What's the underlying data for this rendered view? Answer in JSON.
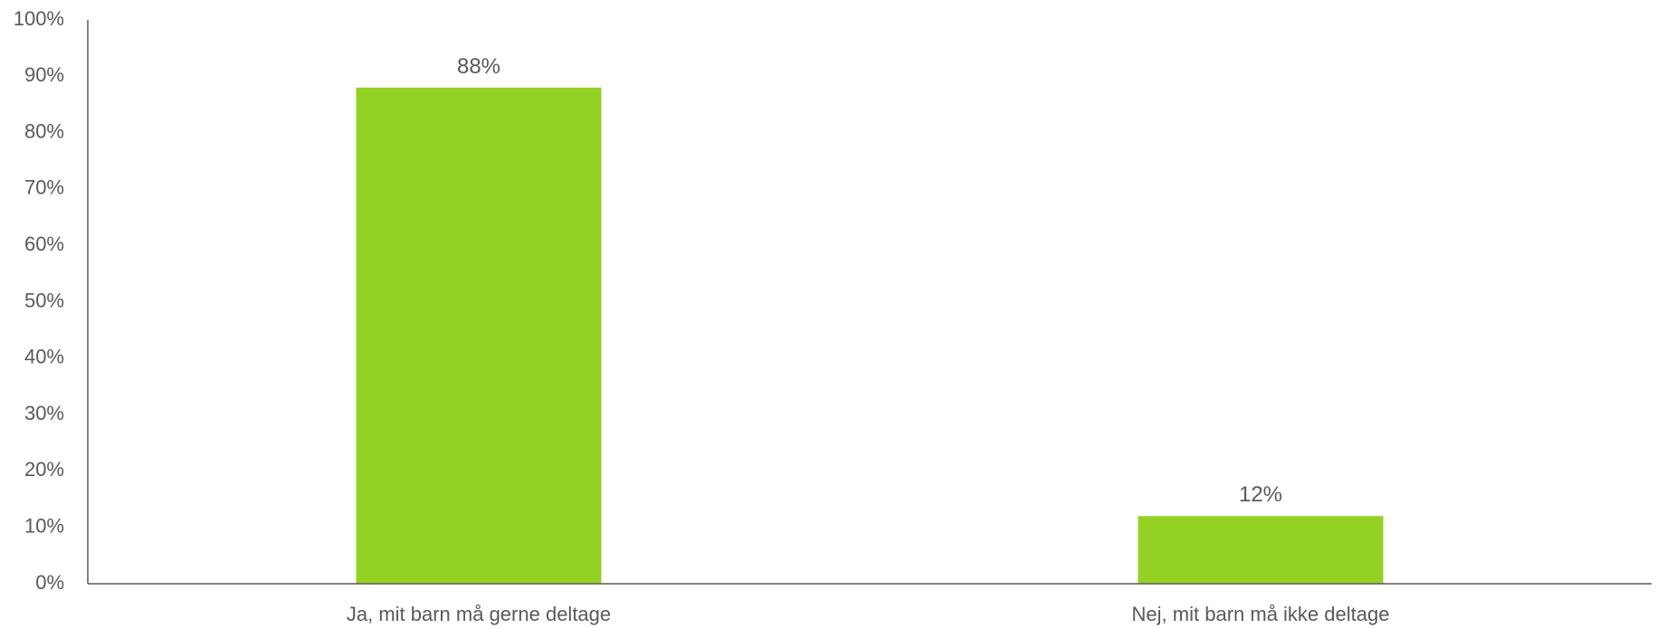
{
  "chart_data": {
    "type": "bar",
    "categories": [
      "Ja, mit barn må gerne deltage",
      "Nej, mit barn må ikke deltage"
    ],
    "values": [
      88,
      12
    ],
    "data_labels": [
      "88%",
      "12%"
    ],
    "title": "",
    "xlabel": "",
    "ylabel": "",
    "ylim": [
      0,
      100
    ],
    "y_ticks": [
      0,
      10,
      20,
      30,
      40,
      50,
      60,
      70,
      80,
      90,
      100
    ],
    "y_tick_labels": [
      "0%",
      "10%",
      "20%",
      "30%",
      "40%",
      "50%",
      "60%",
      "70%",
      "80%",
      "90%",
      "100%"
    ],
    "grid": false,
    "legend": "none",
    "bar_color": "#94D125",
    "axis_color": "#595959",
    "text_color": "#595959"
  }
}
